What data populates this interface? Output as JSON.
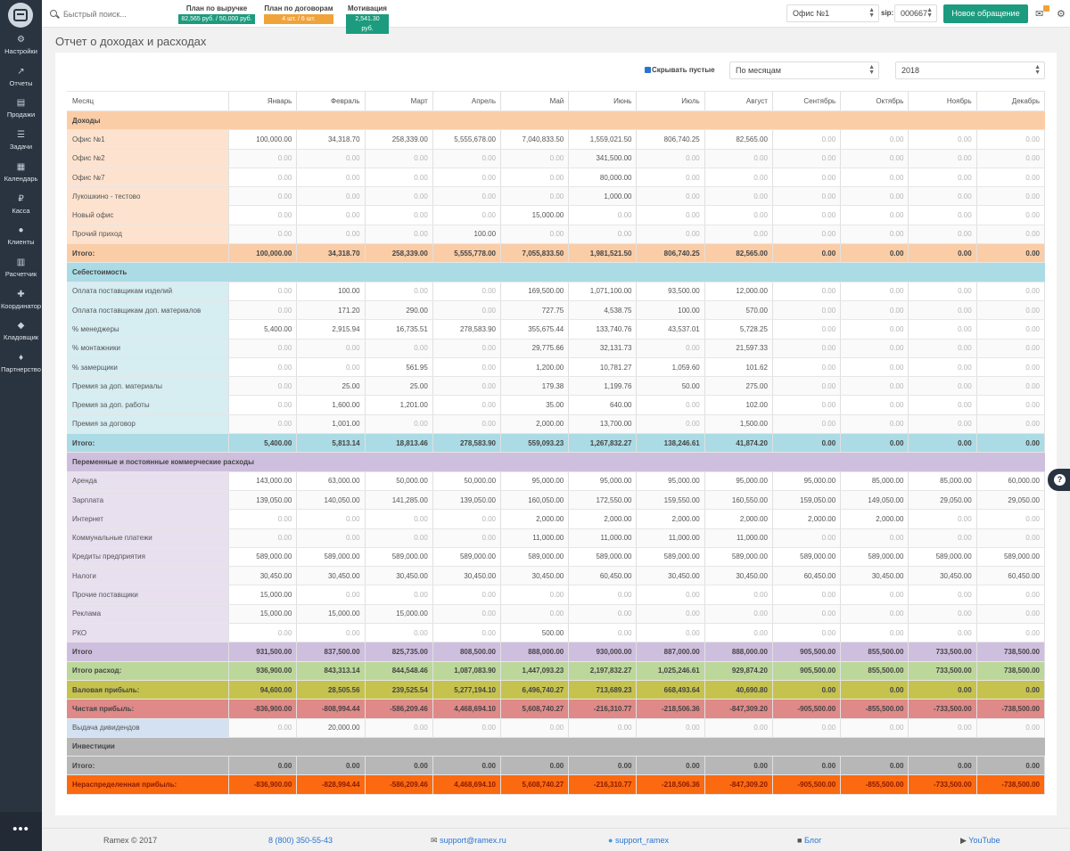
{
  "sidebar": {
    "items": [
      {
        "label": "Настройки",
        "icon": "gear-icon"
      },
      {
        "label": "Отчеты",
        "icon": "chart-icon"
      },
      {
        "label": "Продажи",
        "icon": "document-icon"
      },
      {
        "label": "Задачи",
        "icon": "tasks-icon"
      },
      {
        "label": "Календарь",
        "icon": "calendar-icon"
      },
      {
        "label": "Касса",
        "icon": "ruble-icon"
      },
      {
        "label": "Клиенты",
        "icon": "users-icon"
      },
      {
        "label": "Расчетчик",
        "icon": "calculator-icon"
      },
      {
        "label": "Координатор",
        "icon": "arrows-icon"
      },
      {
        "label": "Кладовщик",
        "icon": "boxes-icon"
      },
      {
        "label": "Партнерство",
        "icon": "handshake-icon"
      }
    ],
    "more": "•••"
  },
  "topbar": {
    "search_placeholder": "Быстрый поиск...",
    "plans": [
      {
        "title": "План по выручке",
        "value": "82,565 руб. / 50,000 руб.",
        "color": "#1d9b7e"
      },
      {
        "title": "План по договорам",
        "value": "4 шт. / 6 шт.",
        "color": "#f0a33a"
      },
      {
        "title": "Мотивация",
        "value": "2,541.30 руб.",
        "color": "#1d9b7e"
      }
    ],
    "office": "Офис №1",
    "sip_label": "sip:",
    "sip_value": "000667",
    "new_request": "Новое обращение"
  },
  "page": {
    "title": "Отчет о доходах и расходах",
    "hide_empty_label": "Скрывать пустые",
    "period": "По месяцам",
    "year": "2018"
  },
  "table": {
    "header": [
      "Месяц",
      "Январь",
      "Февраль",
      "Март",
      "Апрель",
      "Май",
      "Июнь",
      "Июль",
      "Август",
      "Сентябрь",
      "Октябрь",
      "Ноябрь",
      "Декабрь"
    ],
    "rows": [
      {
        "t": "sec",
        "bg": "#fbcda7",
        "label": "Доходы"
      },
      {
        "t": "row",
        "bg": "#fde3cf",
        "label": "Офис №1",
        "v": [
          "100,000.00",
          "34,318.70",
          "258,339.00",
          "5,555,678.00",
          "7,040,833.50",
          "1,559,021.50",
          "806,740.25",
          "82,565.00",
          "0.00",
          "0.00",
          "0.00",
          "0.00"
        ]
      },
      {
        "t": "row",
        "bg": "#fde3cf",
        "label": "Офис №2",
        "v": [
          "0.00",
          "0.00",
          "0.00",
          "0.00",
          "0.00",
          "341,500.00",
          "0.00",
          "0.00",
          "0.00",
          "0.00",
          "0.00",
          "0.00"
        ]
      },
      {
        "t": "row",
        "bg": "#fde3cf",
        "label": "Офис №7",
        "v": [
          "0.00",
          "0.00",
          "0.00",
          "0.00",
          "0.00",
          "80,000.00",
          "0.00",
          "0.00",
          "0.00",
          "0.00",
          "0.00",
          "0.00"
        ]
      },
      {
        "t": "row",
        "bg": "#fde3cf",
        "label": "Лукошкино - тестово",
        "v": [
          "0.00",
          "0.00",
          "0.00",
          "0.00",
          "0.00",
          "1,000.00",
          "0.00",
          "0.00",
          "0.00",
          "0.00",
          "0.00",
          "0.00"
        ]
      },
      {
        "t": "row",
        "bg": "#fde3cf",
        "label": "Новый офис",
        "v": [
          "0.00",
          "0.00",
          "0.00",
          "0.00",
          "15,000.00",
          "0.00",
          "0.00",
          "0.00",
          "0.00",
          "0.00",
          "0.00",
          "0.00"
        ]
      },
      {
        "t": "row",
        "bg": "#fde3cf",
        "label": "Прочий приход",
        "v": [
          "0.00",
          "0.00",
          "0.00",
          "100.00",
          "0.00",
          "0.00",
          "0.00",
          "0.00",
          "0.00",
          "0.00",
          "0.00",
          "0.00"
        ]
      },
      {
        "t": "total",
        "bg": "#fbcda7",
        "label": "Итого:",
        "v": [
          "100,000.00",
          "34,318.70",
          "258,339.00",
          "5,555,778.00",
          "7,055,833.50",
          "1,981,521.50",
          "806,740.25",
          "82,565.00",
          "0.00",
          "0.00",
          "0.00",
          "0.00"
        ]
      },
      {
        "t": "sec",
        "bg": "#abdbe5",
        "label": "Себестоимость"
      },
      {
        "t": "row",
        "bg": "#d6edf2",
        "label": "Оплата поставщикам изделий",
        "v": [
          "0.00",
          "100.00",
          "0.00",
          "0.00",
          "169,500.00",
          "1,071,100.00",
          "93,500.00",
          "12,000.00",
          "0.00",
          "0.00",
          "0.00",
          "0.00"
        ]
      },
      {
        "t": "row",
        "bg": "#d6edf2",
        "label": "Оплата поставщикам доп. материалов",
        "v": [
          "0.00",
          "171.20",
          "290.00",
          "0.00",
          "727.75",
          "4,538.75",
          "100.00",
          "570.00",
          "0.00",
          "0.00",
          "0.00",
          "0.00"
        ]
      },
      {
        "t": "row",
        "bg": "#d6edf2",
        "label": "% менеджеры",
        "v": [
          "5,400.00",
          "2,915.94",
          "16,735.51",
          "278,583.90",
          "355,675.44",
          "133,740.76",
          "43,537.01",
          "5,728.25",
          "0.00",
          "0.00",
          "0.00",
          "0.00"
        ]
      },
      {
        "t": "row",
        "bg": "#d6edf2",
        "label": "% монтажники",
        "v": [
          "0.00",
          "0.00",
          "0.00",
          "0.00",
          "29,775.66",
          "32,131.73",
          "0.00",
          "21,597.33",
          "0.00",
          "0.00",
          "0.00",
          "0.00"
        ]
      },
      {
        "t": "row",
        "bg": "#d6edf2",
        "label": "% замерщики",
        "v": [
          "0.00",
          "0.00",
          "561.95",
          "0.00",
          "1,200.00",
          "10,781.27",
          "1,059.60",
          "101.62",
          "0.00",
          "0.00",
          "0.00",
          "0.00"
        ]
      },
      {
        "t": "row",
        "bg": "#d6edf2",
        "label": "Премия за доп. материалы",
        "v": [
          "0.00",
          "25.00",
          "25.00",
          "0.00",
          "179.38",
          "1,199.76",
          "50.00",
          "275.00",
          "0.00",
          "0.00",
          "0.00",
          "0.00"
        ]
      },
      {
        "t": "row",
        "bg": "#d6edf2",
        "label": "Премия за доп. работы",
        "v": [
          "0.00",
          "1,600.00",
          "1,201.00",
          "0.00",
          "35.00",
          "640.00",
          "0.00",
          "102.00",
          "0.00",
          "0.00",
          "0.00",
          "0.00"
        ]
      },
      {
        "t": "row",
        "bg": "#d6edf2",
        "label": "Премия за договор",
        "v": [
          "0.00",
          "1,001.00",
          "0.00",
          "0.00",
          "2,000.00",
          "13,700.00",
          "0.00",
          "1,500.00",
          "0.00",
          "0.00",
          "0.00",
          "0.00"
        ]
      },
      {
        "t": "total",
        "bg": "#abdbe5",
        "label": "Итого:",
        "v": [
          "5,400.00",
          "5,813.14",
          "18,813.46",
          "278,583.90",
          "559,093.23",
          "1,267,832.27",
          "138,246.61",
          "41,874.20",
          "0.00",
          "0.00",
          "0.00",
          "0.00"
        ]
      },
      {
        "t": "sec",
        "bg": "#cfbfdf",
        "label": "Переменные и постоянные коммерческие расходы"
      },
      {
        "t": "row",
        "bg": "#e8dfef",
        "label": "Аренда",
        "v": [
          "143,000.00",
          "63,000.00",
          "50,000.00",
          "50,000.00",
          "95,000.00",
          "95,000.00",
          "95,000.00",
          "95,000.00",
          "95,000.00",
          "85,000.00",
          "85,000.00",
          "60,000.00"
        ]
      },
      {
        "t": "row",
        "bg": "#e8dfef",
        "label": "Зарплата",
        "v": [
          "139,050.00",
          "140,050.00",
          "141,285.00",
          "139,050.00",
          "160,050.00",
          "172,550.00",
          "159,550.00",
          "160,550.00",
          "159,050.00",
          "149,050.00",
          "29,050.00",
          "29,050.00"
        ]
      },
      {
        "t": "row",
        "bg": "#e8dfef",
        "label": "Интернет",
        "v": [
          "0.00",
          "0.00",
          "0.00",
          "0.00",
          "2,000.00",
          "2,000.00",
          "2,000.00",
          "2,000.00",
          "2,000.00",
          "2,000.00",
          "0.00",
          "0.00"
        ]
      },
      {
        "t": "row",
        "bg": "#e8dfef",
        "label": "Коммунальные платежи",
        "v": [
          "0.00",
          "0.00",
          "0.00",
          "0.00",
          "11,000.00",
          "11,000.00",
          "11,000.00",
          "11,000.00",
          "0.00",
          "0.00",
          "0.00",
          "0.00"
        ]
      },
      {
        "t": "row",
        "bg": "#e8dfef",
        "label": "Кредиты предприятия",
        "v": [
          "589,000.00",
          "589,000.00",
          "589,000.00",
          "589,000.00",
          "589,000.00",
          "589,000.00",
          "589,000.00",
          "589,000.00",
          "589,000.00",
          "589,000.00",
          "589,000.00",
          "589,000.00"
        ]
      },
      {
        "t": "row",
        "bg": "#e8dfef",
        "label": "Налоги",
        "v": [
          "30,450.00",
          "30,450.00",
          "30,450.00",
          "30,450.00",
          "30,450.00",
          "60,450.00",
          "30,450.00",
          "30,450.00",
          "60,450.00",
          "30,450.00",
          "30,450.00",
          "60,450.00"
        ]
      },
      {
        "t": "row",
        "bg": "#e8dfef",
        "label": "Прочие поставщики",
        "v": [
          "15,000.00",
          "0.00",
          "0.00",
          "0.00",
          "0.00",
          "0.00",
          "0.00",
          "0.00",
          "0.00",
          "0.00",
          "0.00",
          "0.00"
        ]
      },
      {
        "t": "row",
        "bg": "#e8dfef",
        "label": "Реклама",
        "v": [
          "15,000.00",
          "15,000.00",
          "15,000.00",
          "0.00",
          "0.00",
          "0.00",
          "0.00",
          "0.00",
          "0.00",
          "0.00",
          "0.00",
          "0.00"
        ]
      },
      {
        "t": "row",
        "bg": "#e8dfef",
        "label": "РКО",
        "v": [
          "0.00",
          "0.00",
          "0.00",
          "0.00",
          "500.00",
          "0.00",
          "0.00",
          "0.00",
          "0.00",
          "0.00",
          "0.00",
          "0.00"
        ]
      },
      {
        "t": "total",
        "bg": "#cfbfdf",
        "label": "Итого",
        "v": [
          "931,500.00",
          "837,500.00",
          "825,735.00",
          "808,500.00",
          "888,000.00",
          "930,000.00",
          "887,000.00",
          "888,000.00",
          "905,500.00",
          "855,500.00",
          "733,500.00",
          "738,500.00"
        ]
      },
      {
        "t": "total",
        "bg": "#bcd79a",
        "label": "Итого расход:",
        "v": [
          "936,900.00",
          "843,313.14",
          "844,548.46",
          "1,087,083.90",
          "1,447,093.23",
          "2,197,832.27",
          "1,025,246.61",
          "929,874.20",
          "905,500.00",
          "855,500.00",
          "733,500.00",
          "738,500.00"
        ]
      },
      {
        "t": "total",
        "bg": "#c6c24e",
        "label": "Валовая прибыль:",
        "v": [
          "94,600.00",
          "28,505.56",
          "239,525.54",
          "5,277,194.10",
          "6,496,740.27",
          "713,689.23",
          "668,493.64",
          "40,690.80",
          "0.00",
          "0.00",
          "0.00",
          "0.00"
        ]
      },
      {
        "t": "total",
        "bg": "#df8989",
        "label": "Чистая прибыль:",
        "v": [
          "-836,900.00",
          "-808,994.44",
          "-586,209.46",
          "4,468,694.10",
          "5,608,740.27",
          "-216,310.77",
          "-218,506.36",
          "-847,309.20",
          "-905,500.00",
          "-855,500.00",
          "-733,500.00",
          "-738,500.00"
        ]
      },
      {
        "t": "div",
        "bg": "#d3e1f2",
        "label": "Выдача дивидендов",
        "v": [
          "0.00",
          "20,000.00",
          "0.00",
          "0.00",
          "0.00",
          "0.00",
          "0.00",
          "0.00",
          "0.00",
          "0.00",
          "0.00",
          "0.00"
        ]
      },
      {
        "t": "sec",
        "bg": "#b7b7b7",
        "label": "Инвестиции"
      },
      {
        "t": "total",
        "bg": "#b7b7b7",
        "label": "Итого:",
        "v": [
          "0.00",
          "0.00",
          "0.00",
          "0.00",
          "0.00",
          "0.00",
          "0.00",
          "0.00",
          "0.00",
          "0.00",
          "0.00",
          "0.00"
        ]
      },
      {
        "t": "total",
        "bg": "#fb6a10",
        "label": "Нераспределенная прибыль:",
        "v": [
          "-836,900.00",
          "-828,994.44",
          "-586,209.46",
          "4,468,694.10",
          "5,608,740.27",
          "-216,310.77",
          "-218,506.36",
          "-847,309.20",
          "-905,500.00",
          "-855,500.00",
          "-733,500.00",
          "-738,500.00"
        ]
      }
    ]
  },
  "footer": {
    "copyright": "Ramex © 2017",
    "phone": "8 (800) 350-55-43",
    "email": "support@ramex.ru",
    "skype": "support_ramex",
    "blog": "Блог",
    "youtube": "YouTube"
  },
  "colors": {
    "accent": "#1d9b7e",
    "link": "#2a74d1",
    "sidebar": "#2a3441"
  }
}
